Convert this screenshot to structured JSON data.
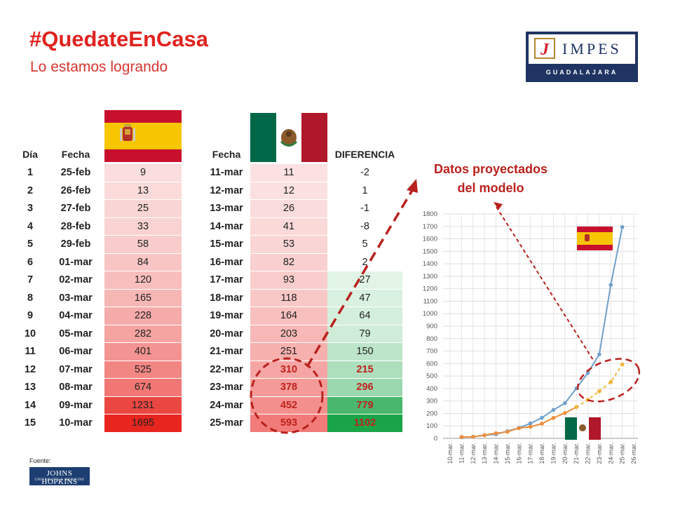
{
  "header": {
    "title": "#QuedateEnCasa",
    "subtitle": "Lo estamos logrando"
  },
  "logo": {
    "letter": "J",
    "name": "IMPES",
    "city": "GUADALAJARA",
    "colors": {
      "navy": "#1f3462",
      "red": "#d3202b",
      "gold": "#b08a2e"
    }
  },
  "icons": {
    "spain_flag": "spain-flag-icon",
    "mexico_flag": "mexico-flag-icon"
  },
  "table": {
    "headers": {
      "dia": "Día",
      "fecha_es": "Fecha",
      "fecha_mx": "Fecha",
      "diferencia": "DIFERENCIA"
    },
    "rows": [
      {
        "dia": "1",
        "fecha_es": "25-feb",
        "spain": "9",
        "fecha_mx": "11-mar",
        "mexico": "11",
        "diferencia": "-2"
      },
      {
        "dia": "2",
        "fecha_es": "26-feb",
        "spain": "13",
        "fecha_mx": "12-mar",
        "mexico": "12",
        "diferencia": "1"
      },
      {
        "dia": "3",
        "fecha_es": "27-feb",
        "spain": "25",
        "fecha_mx": "13-mar",
        "mexico": "26",
        "diferencia": "-1"
      },
      {
        "dia": "4",
        "fecha_es": "28-feb",
        "spain": "33",
        "fecha_mx": "14-mar",
        "mexico": "41",
        "diferencia": "-8"
      },
      {
        "dia": "5",
        "fecha_es": "29-feb",
        "spain": "58",
        "fecha_mx": "15-mar",
        "mexico": "53",
        "diferencia": "5"
      },
      {
        "dia": "6",
        "fecha_es": "01-mar",
        "spain": "84",
        "fecha_mx": "16-mar",
        "mexico": "82",
        "diferencia": "2"
      },
      {
        "dia": "7",
        "fecha_es": "02-mar",
        "spain": "120",
        "fecha_mx": "17-mar",
        "mexico": "93",
        "diferencia": "27"
      },
      {
        "dia": "8",
        "fecha_es": "03-mar",
        "spain": "165",
        "fecha_mx": "18-mar",
        "mexico": "118",
        "diferencia": "47"
      },
      {
        "dia": "9",
        "fecha_es": "04-mar",
        "spain": "228",
        "fecha_mx": "19-mar",
        "mexico": "164",
        "diferencia": "64"
      },
      {
        "dia": "10",
        "fecha_es": "05-mar",
        "spain": "282",
        "fecha_mx": "20-mar",
        "mexico": "203",
        "diferencia": "79"
      },
      {
        "dia": "11",
        "fecha_es": "06-mar",
        "spain": "401",
        "fecha_mx": "21-mar",
        "mexico": "251",
        "diferencia": "150"
      },
      {
        "dia": "12",
        "fecha_es": "07-mar",
        "spain": "525",
        "fecha_mx": "22-mar",
        "mexico": "310",
        "diferencia": "215"
      },
      {
        "dia": "13",
        "fecha_es": "08-mar",
        "spain": "674",
        "fecha_mx": "23-mar",
        "mexico": "378",
        "diferencia": "296"
      },
      {
        "dia": "14",
        "fecha_es": "09-mar",
        "spain": "1231",
        "fecha_mx": "24-mar",
        "mexico": "452",
        "diferencia": "779"
      },
      {
        "dia": "15",
        "fecha_es": "10-mar",
        "spain": "1695",
        "fecha_mx": "25-mar",
        "mexico": "593",
        "diferencia": "1102"
      }
    ],
    "projected_from_row": 11,
    "colors": {
      "heat_low": "#fbe5e5",
      "heat_high": "#e8251f",
      "green_low": "#f1faf3",
      "green_high": "#1aa448",
      "projected_text": "#c0201c"
    }
  },
  "annotation": {
    "line1": "Datos proyectados",
    "line2": "del modelo",
    "color": "#b8211d"
  },
  "chart_data": {
    "type": "line",
    "categories": [
      "10-mar.",
      "11-mar.",
      "12-mar.",
      "13-mar.",
      "14-mar.",
      "15-mar.",
      "16-mar.",
      "17-mar.",
      "18-mar.",
      "19-mar.",
      "20-mar.",
      "21-mar.",
      "22-mar.",
      "23-mar.",
      "24-mar.",
      "25-mar.",
      "26-mar."
    ],
    "ylim": [
      0,
      1800
    ],
    "yticks": [
      "0",
      "100",
      "200",
      "300",
      "400",
      "500",
      "600",
      "700",
      "800",
      "900",
      "1000",
      "1100",
      "1200",
      "1300",
      "1400",
      "1500",
      "1600",
      "1700",
      "1800"
    ],
    "grid": true,
    "series": [
      {
        "key": "spain",
        "color": "#6fa0cc",
        "values": [
          null,
          9,
          13,
          25,
          33,
          58,
          84,
          120,
          165,
          228,
          282,
          401,
          525,
          674,
          1231,
          1695,
          null
        ]
      },
      {
        "key": "mexico",
        "color": "#ec8c3c",
        "values": [
          null,
          11,
          12,
          26,
          41,
          53,
          82,
          93,
          118,
          164,
          203,
          251,
          null,
          null,
          null,
          null,
          null
        ]
      },
      {
        "key": "mexico_projected",
        "color": "#f0b437",
        "dashed": true,
        "values": [
          null,
          null,
          null,
          null,
          null,
          null,
          null,
          null,
          null,
          null,
          null,
          251,
          310,
          378,
          452,
          593,
          null
        ]
      }
    ]
  }
}
